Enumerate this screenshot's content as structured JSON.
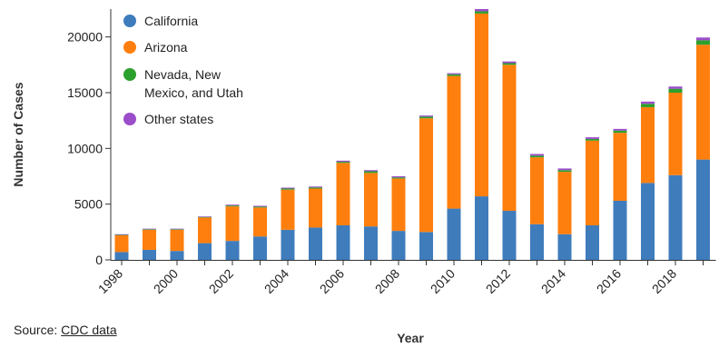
{
  "source": {
    "prefix": "Source: ",
    "link_text": "CDC data"
  },
  "colors": {
    "California": "#3f7cbc",
    "Arizona": "#ff7f0e",
    "Nevada, New Mexico, and Utah": "#2ca02c",
    "Other states": "#9b4dca"
  },
  "chart_data": {
    "type": "bar",
    "stacked": true,
    "xlabel": "Year",
    "ylabel": "Number of Cases",
    "ylim": [
      0,
      22500
    ],
    "yticks": [
      0,
      5000,
      10000,
      15000,
      20000
    ],
    "xtick_labels": [
      "1998",
      "2000",
      "2002",
      "2004",
      "2006",
      "2008",
      "2010",
      "2012",
      "2014",
      "2016",
      "2018"
    ],
    "legend_position": "top-left",
    "categories": [
      "1998",
      "1999",
      "2000",
      "2001",
      "2002",
      "2003",
      "2004",
      "2005",
      "2006",
      "2007",
      "2008",
      "2009",
      "2010",
      "2011",
      "2012",
      "2013",
      "2014",
      "2015",
      "2016",
      "2017",
      "2018",
      "2019"
    ],
    "series": [
      {
        "name": "California",
        "values": [
          700,
          900,
          800,
          1500,
          1700,
          2100,
          2700,
          2900,
          3100,
          3000,
          2600,
          2500,
          4600,
          5700,
          4400,
          3200,
          2300,
          3100,
          5300,
          6900,
          7600,
          9000
        ]
      },
      {
        "name": "Arizona",
        "values": [
          1500,
          1800,
          1900,
          2300,
          3100,
          2600,
          3600,
          3500,
          5600,
          4800,
          4700,
          10200,
          11900,
          16400,
          13100,
          6000,
          5600,
          7600,
          6100,
          6800,
          7400,
          10300
        ]
      },
      {
        "name": "Nevada, New Mexico, and Utah",
        "values": [
          50,
          50,
          50,
          50,
          80,
          80,
          100,
          100,
          100,
          150,
          100,
          150,
          150,
          200,
          150,
          150,
          150,
          150,
          200,
          300,
          350,
          400
        ]
      },
      {
        "name": "Other states",
        "values": [
          50,
          50,
          50,
          50,
          70,
          70,
          80,
          80,
          100,
          100,
          100,
          100,
          100,
          200,
          150,
          150,
          150,
          150,
          150,
          200,
          200,
          250
        ]
      }
    ]
  }
}
